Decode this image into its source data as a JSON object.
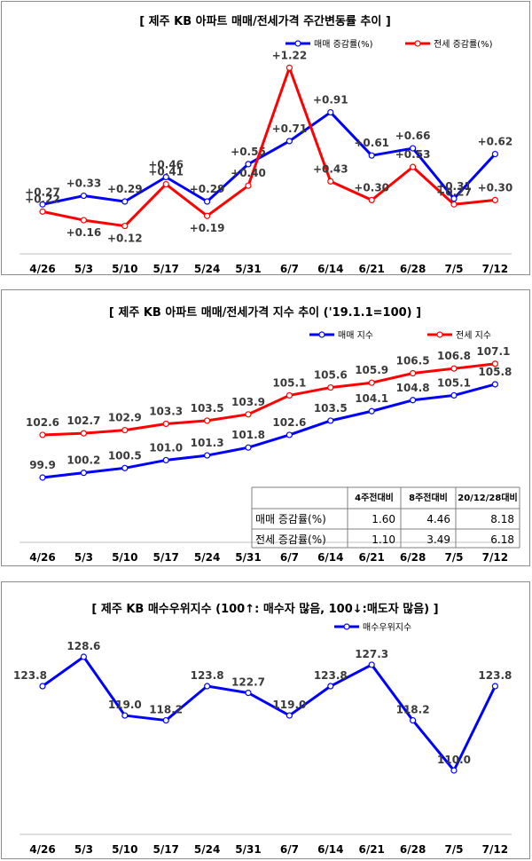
{
  "chart_data": [
    {
      "type": "line",
      "title": "[  제주  KB 아파트 매매/전세가격 주간변동률 추이  ]",
      "categories": [
        "4/26",
        "5/3",
        "5/10",
        "5/17",
        "5/24",
        "5/31",
        "6/7",
        "6/14",
        "6/21",
        "6/28",
        "7/5",
        "7/12"
      ],
      "series": [
        {
          "name": "매매 증감률(%)",
          "color": "#0000ff",
          "values": [
            0.27,
            0.33,
            0.29,
            0.46,
            0.29,
            0.55,
            0.71,
            0.91,
            0.61,
            0.66,
            0.31,
            0.62
          ],
          "labels": [
            "+0.27",
            "+0.33",
            "+0.29",
            "+0.46",
            "+0.29",
            "+0.55",
            "+0.71",
            "+0.91",
            "+0.61",
            "+0.66",
            "+0.31",
            "+0.62"
          ]
        },
        {
          "name": "전세 증감률(%)",
          "color": "#ff0000",
          "values": [
            0.22,
            0.16,
            0.12,
            0.41,
            0.19,
            0.4,
            1.22,
            0.43,
            0.3,
            0.53,
            0.27,
            0.3
          ],
          "labels": [
            "+0.22",
            "+0.16",
            "+0.12",
            "+0.41",
            "+0.19",
            "+0.40",
            "+1.22",
            "+0.43",
            "+0.30",
            "+0.53",
            "+0.27",
            "+0.30"
          ]
        }
      ],
      "ylim": [
        0.0,
        1.35
      ],
      "grid": false,
      "legend": "top-right"
    },
    {
      "type": "line",
      "title": "[  제주  KB 아파트 매매/전세가격 지수 추이 ('19.1.1=100)  ]",
      "categories": [
        "4/26",
        "5/3",
        "5/10",
        "5/17",
        "5/24",
        "5/31",
        "6/7",
        "6/14",
        "6/21",
        "6/28",
        "7/5",
        "7/12"
      ],
      "series": [
        {
          "name": "매매 지수",
          "color": "#0000ff",
          "values": [
            99.9,
            100.2,
            100.5,
            101.0,
            101.3,
            101.8,
            102.6,
            103.5,
            104.1,
            104.8,
            105.1,
            105.8
          ],
          "labels": [
            "99.9",
            "100.2",
            "100.5",
            "101.0",
            "101.3",
            "101.8",
            "102.6",
            "103.5",
            "104.1",
            "104.8",
            "105.1",
            "105.8"
          ]
        },
        {
          "name": "전세 지수",
          "color": "#ff0000",
          "values": [
            102.6,
            102.7,
            102.9,
            103.3,
            103.5,
            103.9,
            105.1,
            105.6,
            105.9,
            106.5,
            106.8,
            107.1
          ],
          "labels": [
            "102.6",
            "102.7",
            "102.9",
            "103.3",
            "103.5",
            "103.9",
            "105.1",
            "105.6",
            "105.9",
            "106.5",
            "106.8",
            "107.1"
          ]
        }
      ],
      "ylim": [
        98.0,
        108.0
      ],
      "grid": false,
      "legend": "top-right",
      "table": {
        "headers": [
          "",
          "4주전대비",
          "8주전대비",
          "20/12/28대비"
        ],
        "rows": [
          [
            "매매 증감률(%)",
            "1.60",
            "4.46",
            "8.18"
          ],
          [
            "전세 증감률(%)",
            "1.10",
            "3.49",
            "6.18"
          ]
        ]
      }
    },
    {
      "type": "line",
      "title": "[  제주  KB 매수우위지수 (100↑: 매수자 많음, 100↓:매도자 많음)  ]",
      "categories": [
        "4/26",
        "5/3",
        "5/10",
        "5/17",
        "5/24",
        "5/31",
        "6/7",
        "6/14",
        "6/21",
        "6/28",
        "7/5",
        "7/12"
      ],
      "series": [
        {
          "name": "매수우위지수",
          "color": "#0000ff",
          "values": [
            123.8,
            128.6,
            119.0,
            118.2,
            123.8,
            122.7,
            119.0,
            123.8,
            127.3,
            118.2,
            110.0,
            123.8
          ],
          "labels": [
            "123.8",
            "128.6",
            "119.0",
            "118.2",
            "123.8",
            "122.7",
            "119.0",
            "123.8",
            "127.3",
            "118.2",
            "110.0",
            "123.8"
          ]
        }
      ],
      "ylim": [
        100.0,
        130.0
      ],
      "grid": false,
      "legend": "top-right"
    }
  ]
}
